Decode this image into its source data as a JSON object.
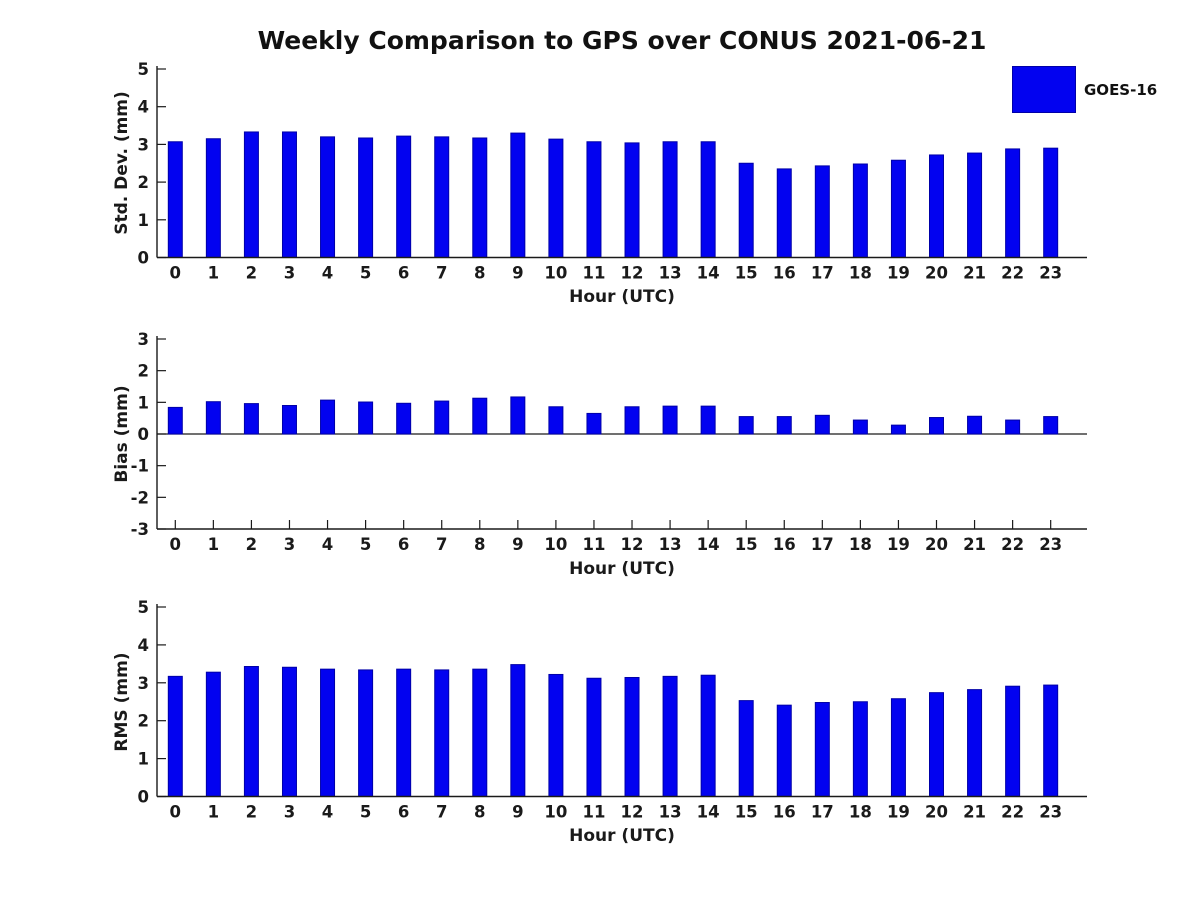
{
  "title": "Weekly Comparison to GPS over CONUS 2021-06-21",
  "legend": {
    "label": "GOES-16",
    "color": "#0202F0"
  },
  "colors": {
    "bar_fill": "#0202F0",
    "bar_edge": "#0000A8",
    "axis": "#1a1a1a"
  },
  "chart_data": [
    {
      "type": "bar",
      "title": "",
      "ylabel": "Std. Dev. (mm)",
      "xlabel": "Hour (UTC)",
      "ylim": [
        0,
        5
      ],
      "yticks": [
        0,
        1,
        2,
        3,
        4,
        5
      ],
      "grid": false,
      "legend_position": "upper right outside",
      "categories": [
        "0",
        "1",
        "2",
        "3",
        "4",
        "5",
        "6",
        "7",
        "8",
        "9",
        "10",
        "11",
        "12",
        "13",
        "14",
        "15",
        "16",
        "17",
        "18",
        "19",
        "20",
        "21",
        "22",
        "23"
      ],
      "series": [
        {
          "name": "GOES-16",
          "values": [
            3.07,
            3.15,
            3.33,
            3.33,
            3.2,
            3.17,
            3.22,
            3.2,
            3.17,
            3.3,
            3.14,
            3.07,
            3.04,
            3.07,
            3.07,
            2.5,
            2.35,
            2.43,
            2.48,
            2.58,
            2.72,
            2.77,
            2.88,
            2.9
          ]
        }
      ]
    },
    {
      "type": "bar",
      "title": "",
      "ylabel": "Bias (mm)",
      "xlabel": "Hour (UTC)",
      "ylim": [
        -3,
        3
      ],
      "yticks": [
        -3,
        -2,
        -1,
        0,
        1,
        2,
        3
      ],
      "grid": false,
      "categories": [
        "0",
        "1",
        "2",
        "3",
        "4",
        "5",
        "6",
        "7",
        "8",
        "9",
        "10",
        "11",
        "12",
        "13",
        "14",
        "15",
        "16",
        "17",
        "18",
        "19",
        "20",
        "21",
        "22",
        "23"
      ],
      "series": [
        {
          "name": "GOES-16",
          "values": [
            0.84,
            1.02,
            0.96,
            0.9,
            1.07,
            1.01,
            0.97,
            1.04,
            1.13,
            1.17,
            0.86,
            0.65,
            0.86,
            0.88,
            0.88,
            0.55,
            0.55,
            0.59,
            0.44,
            0.28,
            0.52,
            0.56,
            0.44,
            0.55
          ]
        }
      ]
    },
    {
      "type": "bar",
      "title": "",
      "ylabel": "RMS (mm)",
      "xlabel": "Hour (UTC)",
      "ylim": [
        0,
        5
      ],
      "yticks": [
        0,
        1,
        2,
        3,
        4,
        5
      ],
      "grid": false,
      "categories": [
        "0",
        "1",
        "2",
        "3",
        "4",
        "5",
        "6",
        "7",
        "8",
        "9",
        "10",
        "11",
        "12",
        "13",
        "14",
        "15",
        "16",
        "17",
        "18",
        "19",
        "20",
        "21",
        "22",
        "23"
      ],
      "series": [
        {
          "name": "GOES-16",
          "values": [
            3.17,
            3.28,
            3.43,
            3.41,
            3.36,
            3.34,
            3.36,
            3.34,
            3.36,
            3.48,
            3.22,
            3.12,
            3.14,
            3.17,
            3.2,
            2.53,
            2.41,
            2.48,
            2.5,
            2.58,
            2.74,
            2.82,
            2.91,
            2.94
          ]
        }
      ]
    }
  ]
}
